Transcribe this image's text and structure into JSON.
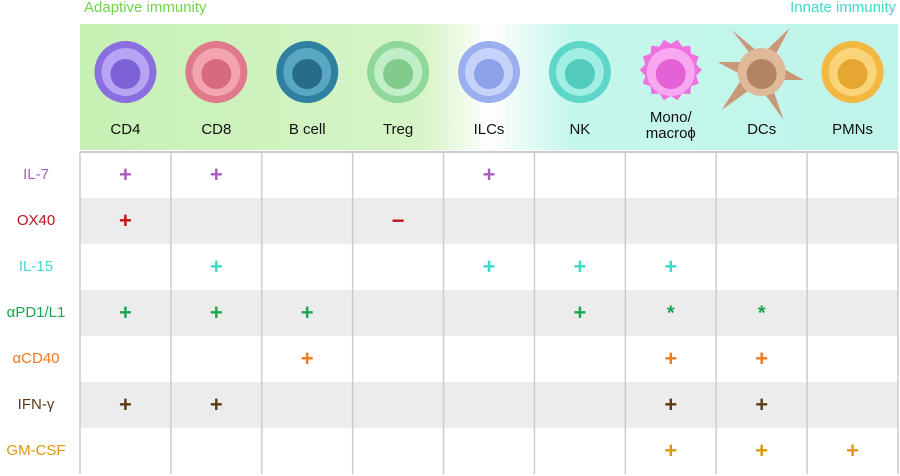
{
  "header": {
    "adaptive": "Adaptive immunity",
    "innate": "Innate immunity"
  },
  "columns": [
    [
      "CD4"
    ],
    [
      "CD8"
    ],
    [
      "B cell"
    ],
    [
      "Treg"
    ],
    [
      "ILCs"
    ],
    [
      "NK"
    ],
    [
      "Mono/",
      "macroϕ"
    ],
    [
      "DCs"
    ],
    [
      "PMNs"
    ]
  ],
  "rows": [
    {
      "label": "IL-7",
      "color": "#a45fc0",
      "cells": [
        "+",
        "+",
        null,
        null,
        "+",
        null,
        null,
        null,
        null
      ]
    },
    {
      "label": "OX40",
      "color": "#c0121a",
      "cells": [
        "+",
        null,
        null,
        "−",
        null,
        null,
        null,
        null,
        null
      ]
    },
    {
      "label": "IL-15",
      "color": "#3fd8cc",
      "cells": [
        null,
        "+",
        null,
        null,
        "+",
        "+",
        "+",
        null,
        null
      ]
    },
    {
      "label": "αPD1/L1",
      "color": "#1aa550",
      "cells": [
        "+",
        "+",
        "+",
        null,
        null,
        "+",
        "*",
        "*",
        null
      ]
    },
    {
      "label": "αCD40",
      "color": "#f07a1e",
      "cells": [
        null,
        null,
        "+",
        null,
        null,
        null,
        "+",
        "+",
        null
      ]
    },
    {
      "label": "IFN-γ",
      "color": "#5a3a14",
      "cells": [
        "+",
        "+",
        null,
        null,
        null,
        null,
        "+",
        "+",
        null
      ]
    },
    {
      "label": "GM-CSF",
      "color": "#d9980e",
      "cells": [
        null,
        null,
        null,
        null,
        null,
        null,
        "+",
        "+",
        "+"
      ]
    }
  ]
}
